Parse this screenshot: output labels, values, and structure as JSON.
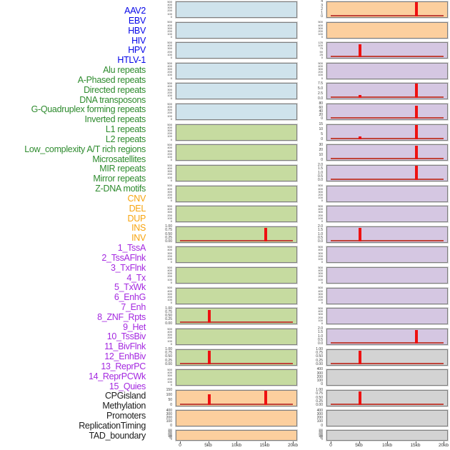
{
  "colors": {
    "label": {
      "blue": "#0404e8",
      "green": "#2e8b2e",
      "orange": "#f7a40e",
      "purple": "#a428e0",
      "black": "#1c1c1c"
    },
    "panel_bg": {
      "blue": "#cfe3ec",
      "green": "#c6dba0",
      "orange": "#fccf9e",
      "purple": "#d5c7e2",
      "gray": "#d3d3d3"
    },
    "spike": "#ee1111",
    "baseline": "#c0443a",
    "panel_border": "#7f7f7f"
  },
  "chart_data": {
    "type": "bar",
    "title": "",
    "x_ticks": [
      "0",
      "5kb",
      "10kb",
      "15kb",
      "20kb"
    ],
    "x_range_kb": [
      0,
      20
    ],
    "columns": 2,
    "rows_per_column": 22,
    "panels": [
      {
        "label": "AAV2",
        "category": "blue",
        "col": "left",
        "row": 1,
        "bg": "blue",
        "yticks": [
          "500",
          "400",
          "300",
          "200",
          "100",
          "0"
        ],
        "spikes": [],
        "baseline": false
      },
      {
        "label": "EBV",
        "category": "blue",
        "col": "left",
        "row": 2,
        "bg": "blue",
        "yticks": [
          "500",
          "400",
          "300",
          "200",
          "100",
          "0"
        ],
        "spikes": [],
        "baseline": false
      },
      {
        "label": "HBV",
        "category": "blue",
        "col": "left",
        "row": 3,
        "bg": "blue",
        "yticks": [
          "500",
          "400",
          "300",
          "200",
          "100",
          "0"
        ],
        "spikes": [],
        "baseline": false
      },
      {
        "label": "HIV",
        "category": "blue",
        "col": "left",
        "row": 4,
        "bg": "blue",
        "yticks": [
          "500",
          "400",
          "300",
          "200",
          "100",
          "0"
        ],
        "spikes": [],
        "baseline": false
      },
      {
        "label": "HPV",
        "category": "blue",
        "col": "left",
        "row": 5,
        "bg": "blue",
        "yticks": [
          "500",
          "400",
          "300",
          "200",
          "100",
          "0"
        ],
        "spikes": [],
        "baseline": false
      },
      {
        "label": "HTLV-1",
        "category": "blue",
        "col": "left",
        "row": 6,
        "bg": "blue",
        "yticks": [
          "500",
          "400",
          "300",
          "200",
          "100",
          "0"
        ],
        "spikes": [],
        "baseline": false
      },
      {
        "label": "Alu repeats",
        "category": "green",
        "col": "left",
        "row": 7,
        "bg": "green",
        "yticks": [
          "500",
          "400",
          "300",
          "200",
          "100",
          "0"
        ],
        "spikes": [],
        "baseline": false
      },
      {
        "label": "A-Phased repeats",
        "category": "green",
        "col": "left",
        "row": 8,
        "bg": "green",
        "yticks": [
          "500",
          "400",
          "300",
          "200",
          "100",
          "0"
        ],
        "spikes": [],
        "baseline": false
      },
      {
        "label": "Directed repeats",
        "category": "green",
        "col": "left",
        "row": 9,
        "bg": "green",
        "yticks": [
          "500",
          "400",
          "300",
          "200",
          "100",
          "0"
        ],
        "spikes": [],
        "baseline": false
      },
      {
        "label": "DNA transposons",
        "category": "green",
        "col": "left",
        "row": 10,
        "bg": "green",
        "yticks": [
          "500",
          "400",
          "300",
          "200",
          "100",
          "0"
        ],
        "spikes": [],
        "baseline": false
      },
      {
        "label": "G-Quadruplex forming repeats",
        "category": "green",
        "col": "left",
        "row": 11,
        "bg": "green",
        "yticks": [
          "500",
          "400",
          "300",
          "200",
          "100",
          "0"
        ],
        "spikes": [],
        "baseline": false
      },
      {
        "label": "Inverted repeats",
        "category": "green",
        "col": "left",
        "row": 12,
        "bg": "green",
        "yticks": [
          "1.00",
          "0.75",
          "0.50",
          "0.25",
          "0.00"
        ],
        "spikes": [
          {
            "x_kb": 15,
            "h": 0.93
          }
        ],
        "baseline": true
      },
      {
        "label": "L1 repeats",
        "category": "green",
        "col": "left",
        "row": 13,
        "bg": "green",
        "yticks": [
          "500",
          "400",
          "300",
          "200",
          "100",
          "0"
        ],
        "spikes": [],
        "baseline": false
      },
      {
        "label": "L2 repeats",
        "category": "green",
        "col": "left",
        "row": 14,
        "bg": "green",
        "yticks": [
          "500",
          "400",
          "300",
          "200",
          "100",
          "0"
        ],
        "spikes": [],
        "baseline": false
      },
      {
        "label": "Low_complexity A/T rich regions",
        "category": "green",
        "col": "left",
        "row": 15,
        "bg": "green",
        "yticks": [
          "500",
          "400",
          "300",
          "200",
          "100",
          "0"
        ],
        "spikes": [],
        "baseline": false
      },
      {
        "label": "Microsatellites",
        "category": "green",
        "col": "left",
        "row": 16,
        "bg": "green",
        "yticks": [
          "1.00",
          "0.75",
          "0.50",
          "0.25",
          "0.00"
        ],
        "spikes": [
          {
            "x_kb": 5,
            "h": 0.93
          }
        ],
        "baseline": true
      },
      {
        "label": "MIR repeats",
        "category": "green",
        "col": "left",
        "row": 17,
        "bg": "green",
        "yticks": [
          "500",
          "400",
          "300",
          "200",
          "100",
          "0"
        ],
        "spikes": [],
        "baseline": false
      },
      {
        "label": "Mirror repeats",
        "category": "green",
        "col": "left",
        "row": 18,
        "bg": "green",
        "yticks": [
          "1.00",
          "0.75",
          "0.50",
          "0.25",
          "0.00"
        ],
        "spikes": [
          {
            "x_kb": 5,
            "h": 0.95
          }
        ],
        "baseline": true
      },
      {
        "label": "Z-DNA motifs",
        "category": "green",
        "col": "left",
        "row": 19,
        "bg": "green",
        "yticks": [
          "500",
          "400",
          "300",
          "200",
          "100",
          "0"
        ],
        "spikes": [],
        "baseline": false
      },
      {
        "label": "CNV",
        "category": "orange",
        "col": "left",
        "row": 20,
        "bg": "orange",
        "yticks": [
          "150",
          "100",
          "50",
          "0"
        ],
        "spikes": [
          {
            "x_kb": 5,
            "h": 0.76
          },
          {
            "x_kb": 15,
            "h": 1.0
          }
        ],
        "baseline": true
      },
      {
        "label": "DEL",
        "category": "orange",
        "col": "left",
        "row": 21,
        "bg": "orange",
        "yticks": [
          "400",
          "300",
          "200",
          "100",
          "0"
        ],
        "spikes": [],
        "baseline": false
      },
      {
        "label": "DUP",
        "category": "orange",
        "col": "left",
        "row": 22,
        "bg": "orange",
        "yticks": [
          "350",
          "300",
          "250",
          "200",
          "150",
          "100",
          "50",
          "0"
        ],
        "spikes": [],
        "baseline": false
      },
      {
        "label": "INS",
        "category": "orange",
        "col": "right",
        "row": 1,
        "bg": "orange",
        "yticks": [
          "4",
          "3",
          "2",
          "1",
          "0"
        ],
        "spikes": [
          {
            "x_kb": 15,
            "h": 1.0
          }
        ],
        "baseline": true
      },
      {
        "label": "INV",
        "category": "orange",
        "col": "right",
        "row": 2,
        "bg": "orange",
        "yticks": [
          "500",
          "400",
          "300",
          "200",
          "100",
          "0"
        ],
        "spikes": [],
        "baseline": false
      },
      {
        "label": "1_TssA",
        "category": "purple",
        "col": "right",
        "row": 3,
        "bg": "purple",
        "yticks": [
          "125",
          "100",
          "75",
          "50",
          "25",
          "0"
        ],
        "spikes": [
          {
            "x_kb": 5,
            "h": 0.92
          }
        ],
        "baseline": true
      },
      {
        "label": "2_TssAFlnk",
        "category": "purple",
        "col": "right",
        "row": 4,
        "bg": "purple",
        "yticks": [
          "500",
          "400",
          "300",
          "200",
          "100",
          "0"
        ],
        "spikes": [],
        "baseline": false
      },
      {
        "label": "3_TxFlnk",
        "category": "purple",
        "col": "right",
        "row": 5,
        "bg": "purple",
        "yticks": [
          "7.5",
          "5.0",
          "2.5",
          "0.0"
        ],
        "spikes": [
          {
            "x_kb": 5,
            "h": 0.22
          },
          {
            "x_kb": 15,
            "h": 1.0
          }
        ],
        "baseline": true
      },
      {
        "label": "4_Tx",
        "category": "purple",
        "col": "right",
        "row": 6,
        "bg": "purple",
        "yticks": [
          "80",
          "60",
          "40",
          "20",
          "0"
        ],
        "spikes": [
          {
            "x_kb": 15,
            "h": 0.93
          }
        ],
        "baseline": true
      },
      {
        "label": "5_TxWk",
        "category": "purple",
        "col": "right",
        "row": 7,
        "bg": "purple",
        "yticks": [
          "15",
          "10",
          "5",
          "0"
        ],
        "spikes": [
          {
            "x_kb": 5,
            "h": 0.18
          },
          {
            "x_kb": 15,
            "h": 0.97
          }
        ],
        "baseline": true
      },
      {
        "label": "6_EnhG",
        "category": "purple",
        "col": "right",
        "row": 8,
        "bg": "purple",
        "yticks": [
          "30",
          "20",
          "10",
          "0"
        ],
        "spikes": [
          {
            "x_kb": 15,
            "h": 0.95
          }
        ],
        "baseline": true
      },
      {
        "label": "7_Enh",
        "category": "purple",
        "col": "right",
        "row": 9,
        "bg": "purple",
        "yticks": [
          "2.0",
          "1.5",
          "1.0",
          "0.5",
          "0.0"
        ],
        "spikes": [
          {
            "x_kb": 15,
            "h": 1.0
          }
        ],
        "baseline": true
      },
      {
        "label": "8_ZNF_Rpts",
        "category": "purple",
        "col": "right",
        "row": 10,
        "bg": "purple",
        "yticks": [
          "500",
          "400",
          "300",
          "200",
          "100",
          "0"
        ],
        "spikes": [],
        "baseline": false
      },
      {
        "label": "9_Het",
        "category": "purple",
        "col": "right",
        "row": 11,
        "bg": "purple",
        "yticks": [
          "500",
          "400",
          "300",
          "200",
          "100",
          "0"
        ],
        "spikes": [],
        "baseline": false
      },
      {
        "label": "10_TssBiv",
        "category": "purple",
        "col": "right",
        "row": 12,
        "bg": "purple",
        "yticks": [
          "2.0",
          "1.5",
          "1.0",
          "0.5",
          "0.0"
        ],
        "spikes": [
          {
            "x_kb": 5,
            "h": 0.95
          }
        ],
        "baseline": true
      },
      {
        "label": "11_BivFlnk",
        "category": "purple",
        "col": "right",
        "row": 13,
        "bg": "purple",
        "yticks": [
          "500",
          "400",
          "300",
          "200",
          "100",
          "0"
        ],
        "spikes": [],
        "baseline": false
      },
      {
        "label": "12_EnhBiv",
        "category": "purple",
        "col": "right",
        "row": 14,
        "bg": "purple",
        "yticks": [
          "500",
          "400",
          "300",
          "200",
          "100",
          "0"
        ],
        "spikes": [],
        "baseline": false
      },
      {
        "label": "13_ReprPC",
        "category": "purple",
        "col": "right",
        "row": 15,
        "bg": "purple",
        "yticks": [
          "500",
          "400",
          "300",
          "200",
          "100",
          "0"
        ],
        "spikes": [],
        "baseline": false
      },
      {
        "label": "14_ReprPCWk",
        "category": "purple",
        "col": "right",
        "row": 16,
        "bg": "purple",
        "yticks": [
          "500",
          "400",
          "300",
          "200",
          "100",
          "0"
        ],
        "spikes": [],
        "baseline": false
      },
      {
        "label": "15_Quies",
        "category": "purple",
        "col": "right",
        "row": 17,
        "bg": "purple",
        "yticks": [
          "2.0",
          "1.5",
          "1.0",
          "0.5",
          "0.0"
        ],
        "spikes": [
          {
            "x_kb": 15,
            "h": 0.95
          }
        ],
        "baseline": true
      },
      {
        "label": "CPGisland",
        "category": "black",
        "col": "right",
        "row": 18,
        "bg": "gray",
        "yticks": [
          "1.00",
          "0.75",
          "0.50",
          "0.25",
          "0.00"
        ],
        "spikes": [
          {
            "x_kb": 5,
            "h": 0.95
          }
        ],
        "baseline": true
      },
      {
        "label": "Methylation",
        "category": "black",
        "col": "right",
        "row": 19,
        "bg": "gray",
        "yticks": [
          "400",
          "300",
          "200",
          "100",
          "0"
        ],
        "spikes": [],
        "baseline": false
      },
      {
        "label": "Promoters",
        "category": "black",
        "col": "right",
        "row": 20,
        "bg": "gray",
        "yticks": [
          "1.00",
          "0.75",
          "0.50",
          "0.25",
          "0.00"
        ],
        "spikes": [
          {
            "x_kb": 5,
            "h": 0.95
          }
        ],
        "baseline": true
      },
      {
        "label": "ReplicationTiming",
        "category": "black",
        "col": "right",
        "row": 21,
        "bg": "gray",
        "yticks": [
          "400",
          "300",
          "200",
          "100",
          "0"
        ],
        "spikes": [],
        "baseline": false
      },
      {
        "label": "TAD_boundary",
        "category": "black",
        "col": "right",
        "row": 22,
        "bg": "gray",
        "yticks": [
          "350",
          "300",
          "250",
          "200",
          "150",
          "100",
          "50",
          "0"
        ],
        "spikes": [],
        "baseline": false
      }
    ]
  }
}
